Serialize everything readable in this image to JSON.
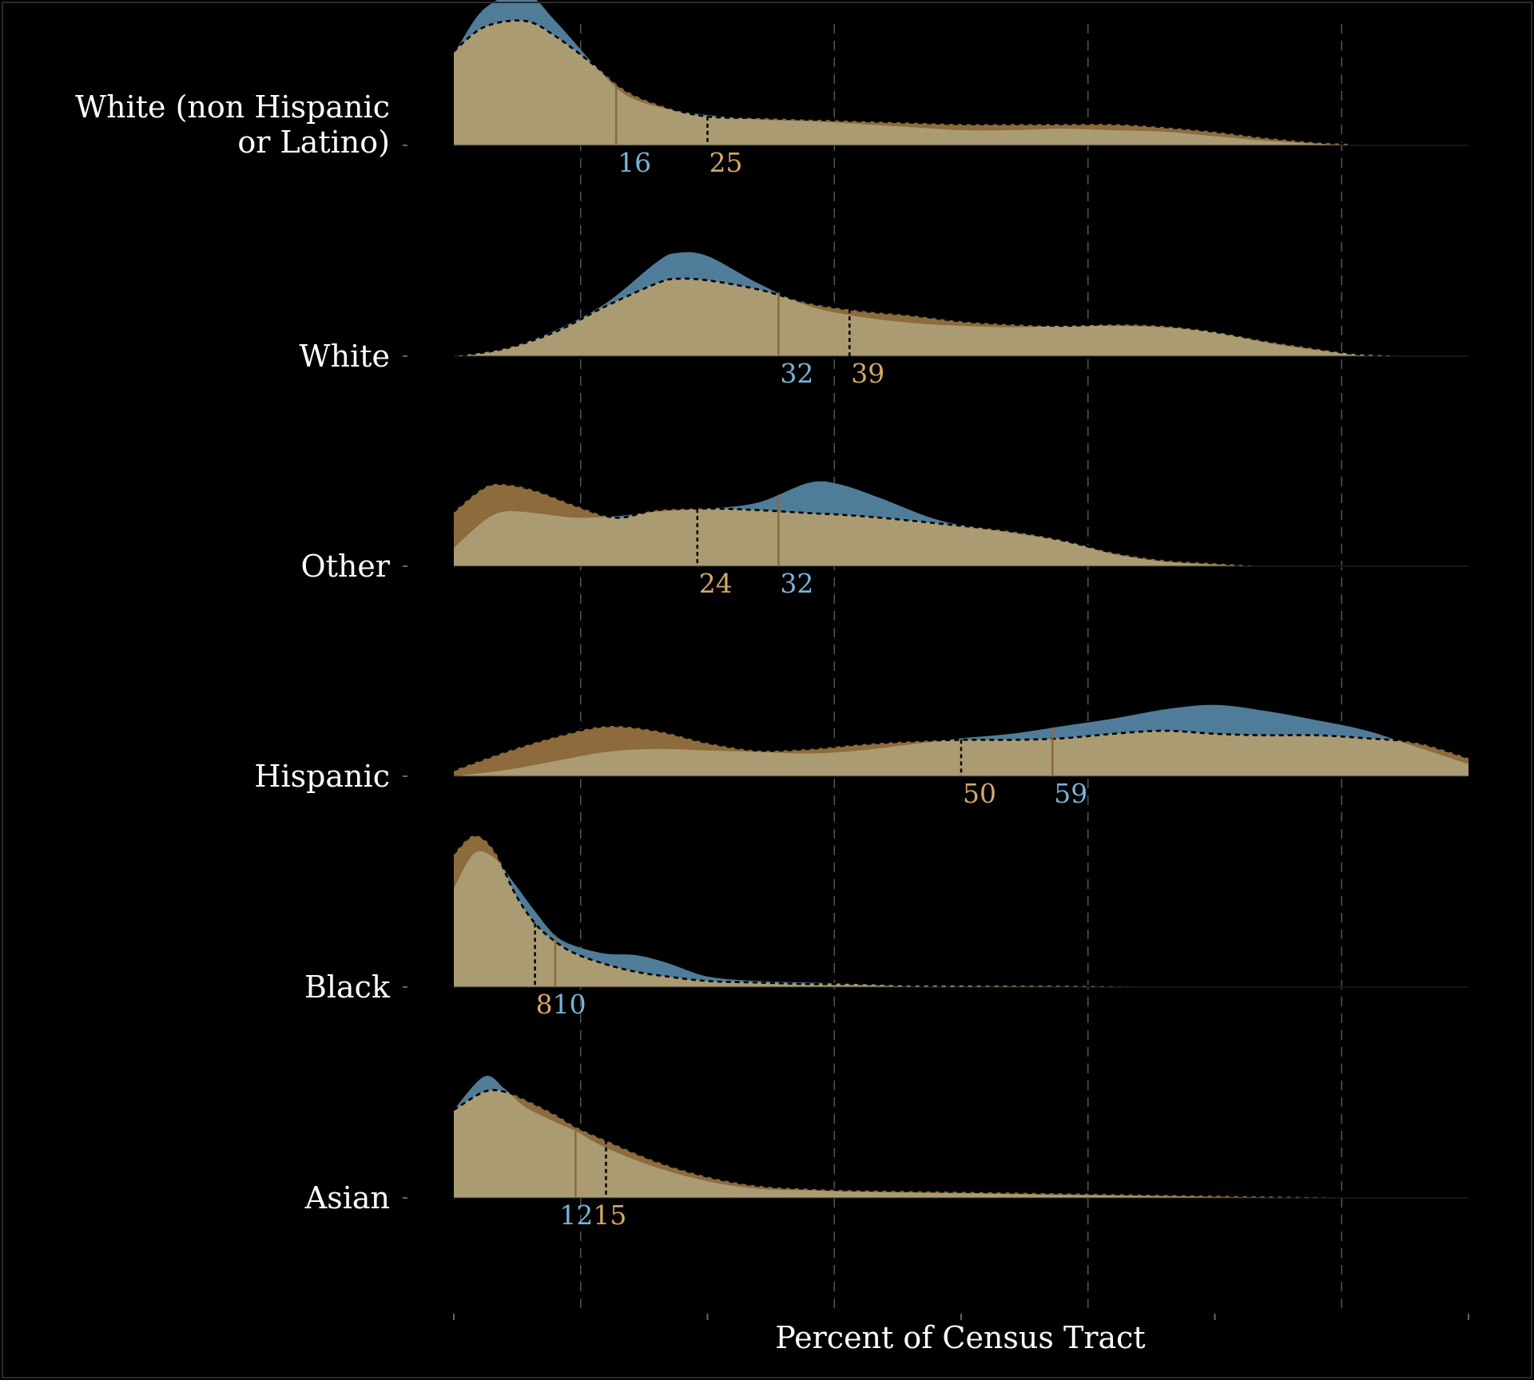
{
  "chart_data": {
    "type": "ridgeline-density",
    "xlabel": "Percent of Census Tract",
    "xlim": [
      0,
      100
    ],
    "major_gridlines": [
      12.5,
      37.5,
      62.5,
      87.5
    ],
    "colors": {
      "blue_group": "#4f7d99",
      "tan_group": "#8d6b3c",
      "overlap_fill": "#ab9b72",
      "blue_label": "#7ab3d4",
      "tan_label": "#d4a76a",
      "background": "#000000",
      "text": "#ffffff",
      "grid": "#555555"
    },
    "rows": [
      {
        "label_lines": [
          "White (non Hispanic",
          "or Latino)"
        ],
        "blue": {
          "median": 16,
          "x": [
            0,
            3,
            7,
            10,
            14,
            17,
            21,
            25,
            30,
            35,
            40,
            45,
            50,
            55,
            60,
            65,
            70,
            75,
            80,
            85,
            88,
            90,
            100
          ],
          "y": [
            0.6,
            0.9,
            1.0,
            0.82,
            0.52,
            0.33,
            0.24,
            0.2,
            0.17,
            0.16,
            0.14,
            0.12,
            0.1,
            0.1,
            0.11,
            0.1,
            0.09,
            0.06,
            0.03,
            0.01,
            0.0,
            0.0,
            0.0
          ]
        },
        "tan": {
          "median": 25,
          "x": [
            0,
            3,
            7,
            10,
            14,
            17,
            21,
            25,
            30,
            35,
            40,
            45,
            50,
            55,
            60,
            65,
            70,
            75,
            80,
            85,
            88,
            90,
            100
          ],
          "y": [
            0.62,
            0.78,
            0.82,
            0.72,
            0.52,
            0.36,
            0.25,
            0.19,
            0.18,
            0.17,
            0.16,
            0.15,
            0.14,
            0.14,
            0.14,
            0.14,
            0.12,
            0.09,
            0.05,
            0.02,
            0.01,
            0.0,
            0.0
          ]
        }
      },
      {
        "label_lines": [
          "White"
        ],
        "blue": {
          "median": 32,
          "x": [
            0,
            5,
            10,
            15,
            20,
            22,
            25,
            30,
            35,
            40,
            45,
            50,
            55,
            60,
            65,
            70,
            75,
            80,
            85,
            88,
            90,
            95,
            100
          ],
          "y": [
            0.0,
            0.05,
            0.17,
            0.35,
            0.62,
            0.68,
            0.66,
            0.48,
            0.33,
            0.26,
            0.22,
            0.2,
            0.19,
            0.2,
            0.2,
            0.19,
            0.16,
            0.09,
            0.04,
            0.02,
            0.01,
            0.0,
            0.0
          ]
        },
        "tan": {
          "median": 39,
          "x": [
            0,
            5,
            10,
            15,
            20,
            22,
            25,
            30,
            35,
            40,
            45,
            50,
            55,
            60,
            65,
            70,
            75,
            80,
            85,
            88,
            90,
            95,
            100
          ],
          "y": [
            0.0,
            0.05,
            0.16,
            0.33,
            0.48,
            0.51,
            0.5,
            0.44,
            0.35,
            0.3,
            0.27,
            0.23,
            0.21,
            0.2,
            0.21,
            0.2,
            0.16,
            0.1,
            0.05,
            0.02,
            0.01,
            0.0,
            0.0
          ]
        }
      },
      {
        "label_lines": [
          "Other"
        ],
        "blue": {
          "median": 32,
          "x": [
            0,
            3,
            5,
            8,
            12,
            16,
            20,
            25,
            30,
            35,
            38,
            42,
            48,
            55,
            60,
            65,
            70,
            75,
            80,
            85,
            90,
            95
          ],
          "y": [
            0.12,
            0.3,
            0.36,
            0.35,
            0.32,
            0.33,
            0.36,
            0.38,
            0.42,
            0.55,
            0.54,
            0.45,
            0.3,
            0.22,
            0.17,
            0.08,
            0.03,
            0.01,
            0.0,
            0.0,
            0.0,
            0.0
          ]
        },
        "tan": {
          "median": 24,
          "x": [
            0,
            3,
            5,
            8,
            12,
            16,
            20,
            25,
            30,
            35,
            38,
            42,
            48,
            55,
            60,
            65,
            70,
            75,
            80,
            85,
            90,
            95
          ],
          "y": [
            0.36,
            0.52,
            0.54,
            0.5,
            0.4,
            0.32,
            0.37,
            0.38,
            0.37,
            0.35,
            0.34,
            0.32,
            0.28,
            0.23,
            0.17,
            0.09,
            0.04,
            0.02,
            0.0,
            0.0,
            0.0,
            0.0
          ]
        }
      },
      {
        "label_lines": [
          "Hispanic"
        ],
        "blue": {
          "median": 59,
          "x": [
            0,
            5,
            10,
            15,
            20,
            25,
            30,
            35,
            40,
            45,
            50,
            55,
            60,
            65,
            70,
            75,
            80,
            85,
            90,
            95,
            100
          ],
          "y": [
            0.0,
            0.04,
            0.1,
            0.16,
            0.18,
            0.17,
            0.16,
            0.15,
            0.17,
            0.21,
            0.25,
            0.28,
            0.33,
            0.38,
            0.44,
            0.47,
            0.43,
            0.37,
            0.3,
            0.19,
            0.08
          ]
        },
        "tan": {
          "median": 50,
          "x": [
            0,
            5,
            10,
            15,
            20,
            25,
            30,
            35,
            40,
            45,
            50,
            55,
            60,
            65,
            70,
            75,
            80,
            85,
            90,
            95,
            100
          ],
          "y": [
            0.04,
            0.16,
            0.26,
            0.33,
            0.3,
            0.22,
            0.17,
            0.18,
            0.21,
            0.23,
            0.24,
            0.24,
            0.25,
            0.28,
            0.3,
            0.28,
            0.27,
            0.27,
            0.25,
            0.22,
            0.12
          ]
        }
      },
      {
        "label_lines": [
          "Black"
        ],
        "blue": {
          "median": 10,
          "x": [
            0,
            2,
            4,
            6,
            8,
            10,
            12,
            15,
            18,
            21,
            25,
            30,
            35,
            40,
            45,
            50,
            60,
            70,
            80,
            90
          ],
          "y": [
            0.65,
            0.88,
            0.85,
            0.68,
            0.5,
            0.34,
            0.27,
            0.22,
            0.21,
            0.16,
            0.07,
            0.04,
            0.03,
            0.02,
            0.01,
            0.01,
            0.0,
            0.0,
            0.0,
            0.0
          ]
        },
        "tan": {
          "median": 8,
          "x": [
            0,
            2,
            4,
            6,
            8,
            10,
            12,
            15,
            18,
            21,
            25,
            30,
            35,
            40,
            45,
            50,
            60,
            70,
            80,
            90
          ],
          "y": [
            0.88,
            1.0,
            0.9,
            0.62,
            0.42,
            0.3,
            0.22,
            0.15,
            0.1,
            0.07,
            0.04,
            0.03,
            0.02,
            0.02,
            0.01,
            0.01,
            0.01,
            0.0,
            0.0,
            0.0
          ]
        }
      },
      {
        "label_lines": [
          "Asian"
        ],
        "blue": {
          "median": 12,
          "x": [
            0,
            3,
            5,
            7,
            10,
            12,
            15,
            20,
            25,
            30,
            35,
            40,
            50,
            60,
            70,
            80,
            90,
            95
          ],
          "y": [
            0.58,
            0.8,
            0.72,
            0.6,
            0.5,
            0.44,
            0.33,
            0.2,
            0.11,
            0.06,
            0.05,
            0.04,
            0.03,
            0.02,
            0.01,
            0.0,
            0.0,
            0.0
          ]
        },
        "tan": {
          "median": 15,
          "x": [
            0,
            3,
            5,
            7,
            10,
            12,
            15,
            20,
            25,
            30,
            35,
            40,
            50,
            60,
            70,
            80,
            90,
            95
          ],
          "y": [
            0.58,
            0.7,
            0.7,
            0.65,
            0.55,
            0.47,
            0.38,
            0.24,
            0.14,
            0.08,
            0.06,
            0.05,
            0.04,
            0.03,
            0.02,
            0.01,
            0.0,
            0.0
          ]
        }
      }
    ]
  }
}
